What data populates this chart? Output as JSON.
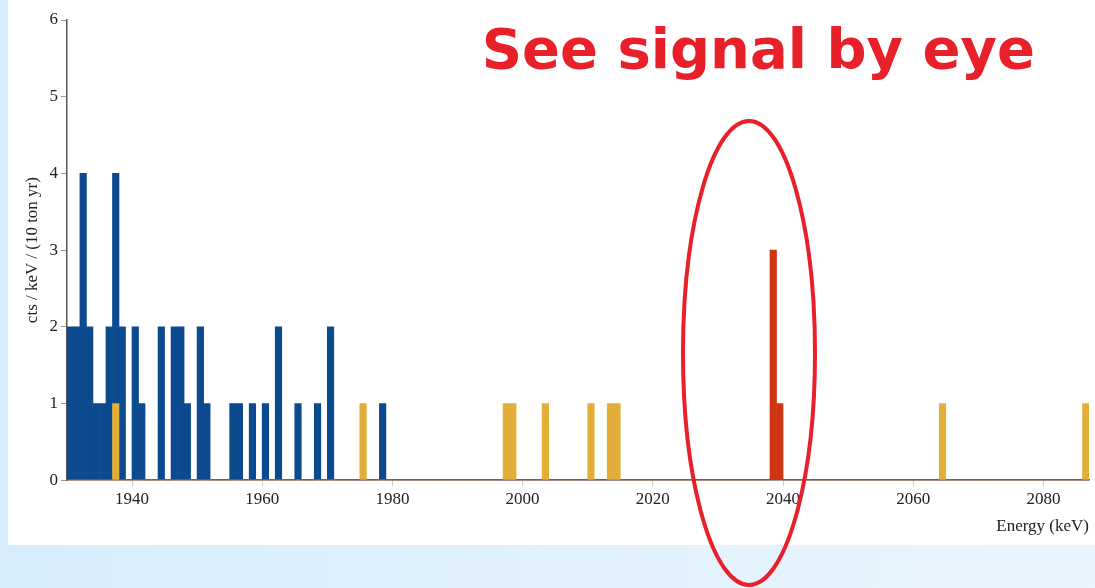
{
  "chart_data": {
    "type": "histogram",
    "xlabel": "Energy (keV)",
    "ylabel": "cts / keV / (10 ton yr)",
    "annotations": [
      "See signal by eye"
    ],
    "bins": [
      1930,
      1931,
      1932,
      1933,
      1934,
      1935,
      1936,
      1937,
      1938,
      1939,
      1940,
      1941,
      1942,
      1943,
      1944,
      1945,
      1946,
      1947,
      1948,
      1949,
      1950,
      1951,
      1952,
      1953,
      1954,
      1955,
      1956,
      1957,
      1958,
      1959,
      1960,
      1961,
      1962,
      1963,
      1964,
      1965,
      1966,
      1967,
      1968,
      1969,
      1970,
      1971,
      1972,
      1973,
      1974,
      1975,
      1976,
      1977,
      1978,
      1979,
      1980,
      1981,
      1982,
      1983,
      1984,
      1985,
      1986,
      1987,
      1988,
      1989,
      1990,
      1991,
      1992,
      1993,
      1994,
      1995,
      1996,
      1997,
      1998,
      1999,
      2000,
      2001,
      2002,
      2003,
      2004,
      2005,
      2006,
      2007,
      2008,
      2009,
      2010,
      2011,
      2012,
      2013,
      2014,
      2015,
      2016,
      2017,
      2018,
      2019,
      2020,
      2021,
      2022,
      2023,
      2024,
      2025,
      2026,
      2027,
      2028,
      2029,
      2030,
      2031,
      2032,
      2033,
      2034,
      2035,
      2036,
      2037,
      2038,
      2039,
      2040,
      2041,
      2042,
      2043,
      2044,
      2045,
      2046,
      2047,
      2048,
      2049,
      2050,
      2051,
      2052,
      2053,
      2054,
      2055,
      2056,
      2057,
      2058,
      2059,
      2060,
      2061,
      2062,
      2063,
      2064,
      2065,
      2066,
      2067,
      2068,
      2069,
      2070,
      2071,
      2072,
      2073,
      2074,
      2075,
      2076,
      2077,
      2078,
      2079,
      2080,
      2081,
      2082,
      2083,
      2084,
      2085,
      2086,
      2087
    ],
    "series": [
      {
        "color": "#0b4a8e",
        "values": [
          2,
          2,
          4,
          2,
          1,
          1,
          2,
          4,
          2,
          0,
          2,
          1,
          0,
          0,
          2,
          0,
          2,
          2,
          1,
          0,
          2,
          1,
          0,
          0,
          0,
          1,
          1,
          0,
          1,
          0,
          1,
          0,
          2,
          0,
          0,
          1,
          0,
          0,
          1,
          0,
          2,
          0,
          0,
          0,
          0,
          0,
          0,
          0,
          1,
          0,
          0,
          0,
          0,
          0,
          0,
          0,
          0,
          0,
          0,
          0,
          0,
          0,
          0,
          0,
          0,
          0,
          0,
          0,
          0,
          0,
          0,
          0,
          0,
          0,
          0,
          0,
          0,
          0,
          0,
          0,
          0,
          0,
          0,
          0,
          0,
          0,
          0,
          0,
          0,
          0,
          0,
          0,
          0,
          0,
          0,
          0,
          0,
          0,
          0,
          0,
          0,
          0,
          0,
          0,
          0,
          0,
          0,
          0,
          0,
          0,
          0,
          0,
          0,
          0,
          0,
          0,
          0,
          0,
          0,
          0,
          0,
          0,
          0,
          0,
          0,
          0,
          0,
          0,
          0,
          0,
          0,
          0,
          0,
          0,
          0,
          0,
          0,
          0,
          0,
          0,
          0,
          0,
          0,
          0,
          0,
          0,
          0,
          0,
          0,
          0,
          0,
          0,
          0,
          0,
          0,
          0,
          0
        ]
      },
      {
        "color": "#e2ae37",
        "values": [
          0,
          0,
          0,
          0,
          0,
          0,
          0,
          1,
          0,
          0,
          0,
          0,
          0,
          0,
          0,
          0,
          0,
          0,
          0,
          0,
          0,
          0,
          0,
          0,
          0,
          0,
          0,
          0,
          0,
          0,
          0,
          0,
          0,
          0,
          0,
          0,
          0,
          0,
          0,
          0,
          0,
          0,
          0,
          0,
          0,
          1,
          0,
          0,
          0,
          0,
          0,
          0,
          0,
          0,
          0,
          0,
          0,
          0,
          0,
          0,
          0,
          0,
          0,
          0,
          0,
          0,
          0,
          1,
          1,
          0,
          0,
          0,
          0,
          1,
          0,
          0,
          0,
          0,
          0,
          0,
          1,
          0,
          0,
          1,
          1,
          0,
          0,
          0,
          0,
          0,
          0,
          0,
          0,
          0,
          0,
          0,
          0,
          0,
          0,
          0,
          0,
          0,
          0,
          0,
          0,
          0,
          0,
          0,
          0,
          0,
          0,
          0,
          0,
          0,
          0,
          0,
          0,
          0,
          0,
          0,
          0,
          0,
          0,
          0,
          0,
          0,
          0,
          0,
          0,
          0,
          0,
          0,
          0,
          0,
          1,
          0,
          0,
          0,
          0,
          0,
          0,
          0,
          0,
          0,
          0,
          0,
          0,
          0,
          0,
          0,
          0,
          0,
          0,
          0,
          0,
          0,
          1
        ]
      },
      {
        "color": "#cf3511",
        "values": [
          0,
          0,
          0,
          0,
          0,
          0,
          0,
          0,
          0,
          0,
          0,
          0,
          0,
          0,
          0,
          0,
          0,
          0,
          0,
          0,
          0,
          0,
          0,
          0,
          0,
          0,
          0,
          0,
          0,
          0,
          0,
          0,
          0,
          0,
          0,
          0,
          0,
          0,
          0,
          0,
          0,
          0,
          0,
          0,
          0,
          0,
          0,
          0,
          0,
          0,
          0,
          0,
          0,
          0,
          0,
          0,
          0,
          0,
          0,
          0,
          0,
          0,
          0,
          0,
          0,
          0,
          0,
          0,
          0,
          0,
          0,
          0,
          0,
          0,
          0,
          0,
          0,
          0,
          0,
          0,
          0,
          0,
          0,
          0,
          0,
          0,
          0,
          0,
          0,
          0,
          0,
          0,
          0,
          0,
          0,
          0,
          0,
          0,
          0,
          0,
          0,
          0,
          0,
          0,
          0,
          0,
          0,
          0,
          3,
          1,
          0,
          0,
          0,
          0,
          0,
          0,
          0,
          0,
          0,
          0,
          0,
          0,
          0,
          0,
          0,
          0,
          0,
          0,
          0,
          0,
          0,
          0,
          0,
          0,
          0,
          0,
          0,
          0,
          0,
          0,
          0,
          0,
          0,
          0,
          0,
          0,
          0,
          0,
          0,
          0,
          0,
          0,
          0,
          0,
          0,
          0,
          0
        ]
      }
    ],
    "xlim": [
      1930,
      2087
    ],
    "ylim": [
      0,
      6
    ],
    "xticks": [
      1940,
      1960,
      1980,
      2000,
      2020,
      2040,
      2060,
      2080
    ],
    "yticks": [
      0,
      1,
      2,
      3,
      4,
      5,
      6
    ],
    "grid": false,
    "legend": false
  }
}
